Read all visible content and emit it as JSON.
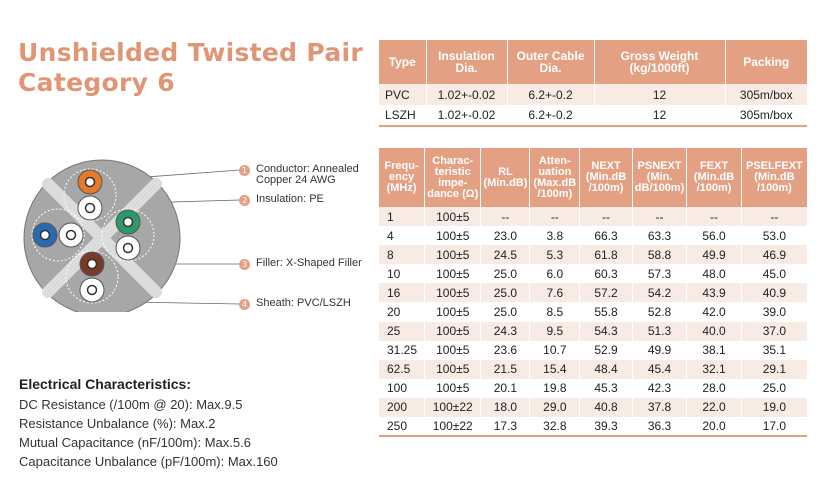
{
  "title": {
    "line1": "Unshielded Twisted Pair",
    "line2": "Category 6"
  },
  "product_table": {
    "headers": [
      "Type",
      "Insulation Dia.",
      "Outer Cable Dia.",
      "Gross Weight (kg/1000ft)",
      "Packing"
    ],
    "rows": [
      [
        "PVC",
        "1.02+-0.02",
        "6.2+-0.2",
        "12",
        "305m/box"
      ],
      [
        "LSZH",
        "1.02+-0.02",
        "6.2+-0.2",
        "12",
        "305m/box"
      ]
    ]
  },
  "diagram": {
    "callouts": [
      {
        "num": "1",
        "text1": "Conductor: Annealed",
        "text2": "Copper 24 AWG"
      },
      {
        "num": "2",
        "text1": "Insulation: PE"
      },
      {
        "num": "3",
        "text1": "Filler: X-Shaped Filler"
      },
      {
        "num": "4",
        "text1": "Sheath: PVC/LSZH"
      }
    ],
    "colors": {
      "orange": "#e47a2c",
      "blue": "#2a6bb0",
      "green": "#2a9a6a",
      "brown": "#7a3a2a",
      "jacket": "#a7a7a7",
      "accent": "#e4a083"
    }
  },
  "electrical": {
    "heading": "Electrical Characteristics:",
    "lines": [
      "DC Resistance (/100m @ 20): Max.9.5",
      "Resistance Unbalance (%): Max.2",
      "Mutual Capacitance (nF/100m): Max.5.6",
      "Capacitance Unbalance (pF/100m): Max.160"
    ]
  },
  "perf_table": {
    "headers": [
      [
        "Frequ-",
        "ency",
        "(MHz)"
      ],
      [
        "Charac-",
        "teristic",
        "impe-",
        "dance (Ω)"
      ],
      [
        "RL",
        "(Min.dB)"
      ],
      [
        "Atten-",
        "uation",
        "(Max.dB",
        "/100m)"
      ],
      [
        "NEXT",
        "(Min.dB",
        "/100m)"
      ],
      [
        "PSNEXT",
        "(Min.",
        "dB/100m)"
      ],
      [
        "FEXT",
        "(Min.dB",
        "/100m)"
      ],
      [
        "PSELFEXT",
        "(Min.dB",
        "/100m)"
      ]
    ],
    "rows": [
      [
        "1",
        "100±5",
        "--",
        "--",
        "--",
        "--",
        "--",
        "--"
      ],
      [
        "4",
        "100±5",
        "23.0",
        "3.8",
        "66.3",
        "63.3",
        "56.0",
        "53.0"
      ],
      [
        "8",
        "100±5",
        "24.5",
        "5.3",
        "61.8",
        "58.8",
        "49.9",
        "46.9"
      ],
      [
        "10",
        "100±5",
        "25.0",
        "6.0",
        "60.3",
        "57.3",
        "48.0",
        "45.0"
      ],
      [
        "16",
        "100±5",
        "25.0",
        "7.6",
        "57.2",
        "54.2",
        "43.9",
        "40.9"
      ],
      [
        "20",
        "100±5",
        "25.0",
        "8.5",
        "55.8",
        "52.8",
        "42.0",
        "39.0"
      ],
      [
        "25",
        "100±5",
        "24.3",
        "9.5",
        "54.3",
        "51.3",
        "40.0",
        "37.0"
      ],
      [
        "31.25",
        "100±5",
        "23.6",
        "10.7",
        "52.9",
        "49.9",
        "38.1",
        "35.1"
      ],
      [
        "62.5",
        "100±5",
        "21.5",
        "15.4",
        "48.4",
        "45.4",
        "32.1",
        "29.1"
      ],
      [
        "100",
        "100±5",
        "20.1",
        "19.8",
        "45.3",
        "42.3",
        "28.0",
        "25.0"
      ],
      [
        "200",
        "100±22",
        "18.0",
        "29.0",
        "40.8",
        "37.8",
        "22.0",
        "19.0"
      ],
      [
        "250",
        "100±22",
        "17.3",
        "32.8",
        "39.3",
        "36.3",
        "20.0",
        "17.0"
      ]
    ]
  }
}
